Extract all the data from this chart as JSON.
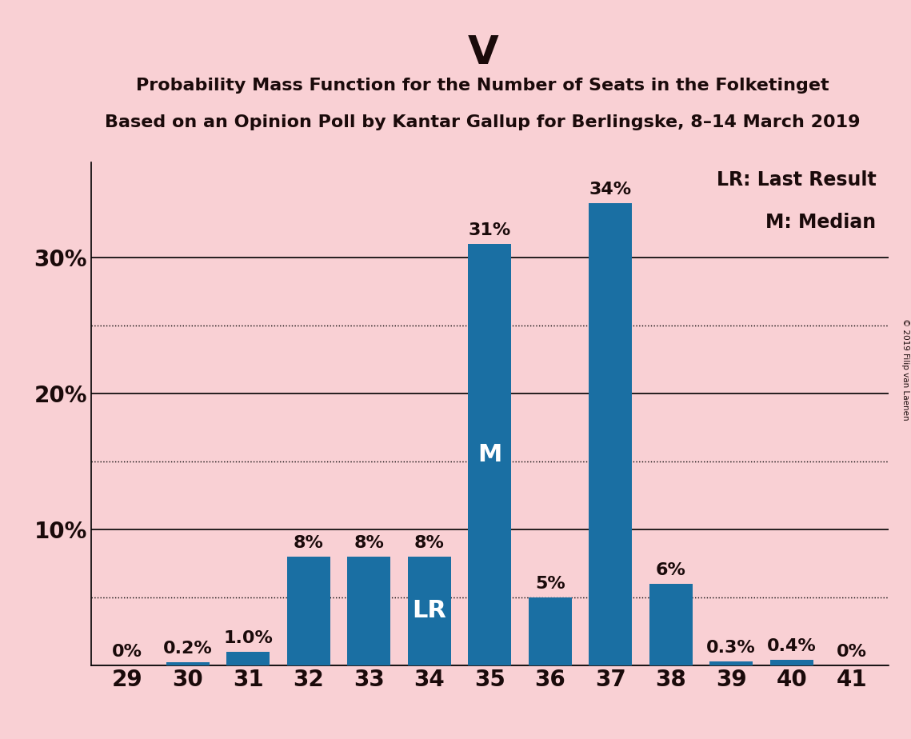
{
  "title": "V",
  "subtitle1": "Probability Mass Function for the Number of Seats in the Folketinget",
  "subtitle2": "Based on an Opinion Poll by Kantar Gallup for Berlingske, 8–14 March 2019",
  "copyright": "© 2019 Filip van Laenen",
  "categories": [
    29,
    30,
    31,
    32,
    33,
    34,
    35,
    36,
    37,
    38,
    39,
    40,
    41
  ],
  "values": [
    0.0,
    0.2,
    1.0,
    8.0,
    8.0,
    8.0,
    31.0,
    5.0,
    34.0,
    6.0,
    0.3,
    0.4,
    0.0
  ],
  "bar_color": "#1a6fa3",
  "background_color": "#f9d0d4",
  "text_color": "#1a0a0a",
  "bar_labels": [
    "0%",
    "0.2%",
    "1.0%",
    "8%",
    "8%",
    "8%",
    "31%",
    "5%",
    "34%",
    "6%",
    "0.3%",
    "0.4%",
    "0%"
  ],
  "lr_index": 5,
  "median_index": 6,
  "lr_label": "LR",
  "median_label": "M",
  "legend_lr": "LR: Last Result",
  "legend_m": "M: Median",
  "ylim": [
    0,
    37
  ],
  "yticks": [
    10,
    20,
    30
  ],
  "ytick_labels": [
    "10%",
    "20%",
    "30%"
  ],
  "solid_lines": [
    10,
    20,
    30
  ],
  "dotted_lines": [
    5,
    15,
    25
  ],
  "title_fontsize": 36,
  "subtitle_fontsize": 16,
  "axis_label_fontsize": 20,
  "bar_label_fontsize": 16,
  "inbar_label_fontsize": 22,
  "legend_fontsize": 17,
  "xlabel_fontsize": 20
}
